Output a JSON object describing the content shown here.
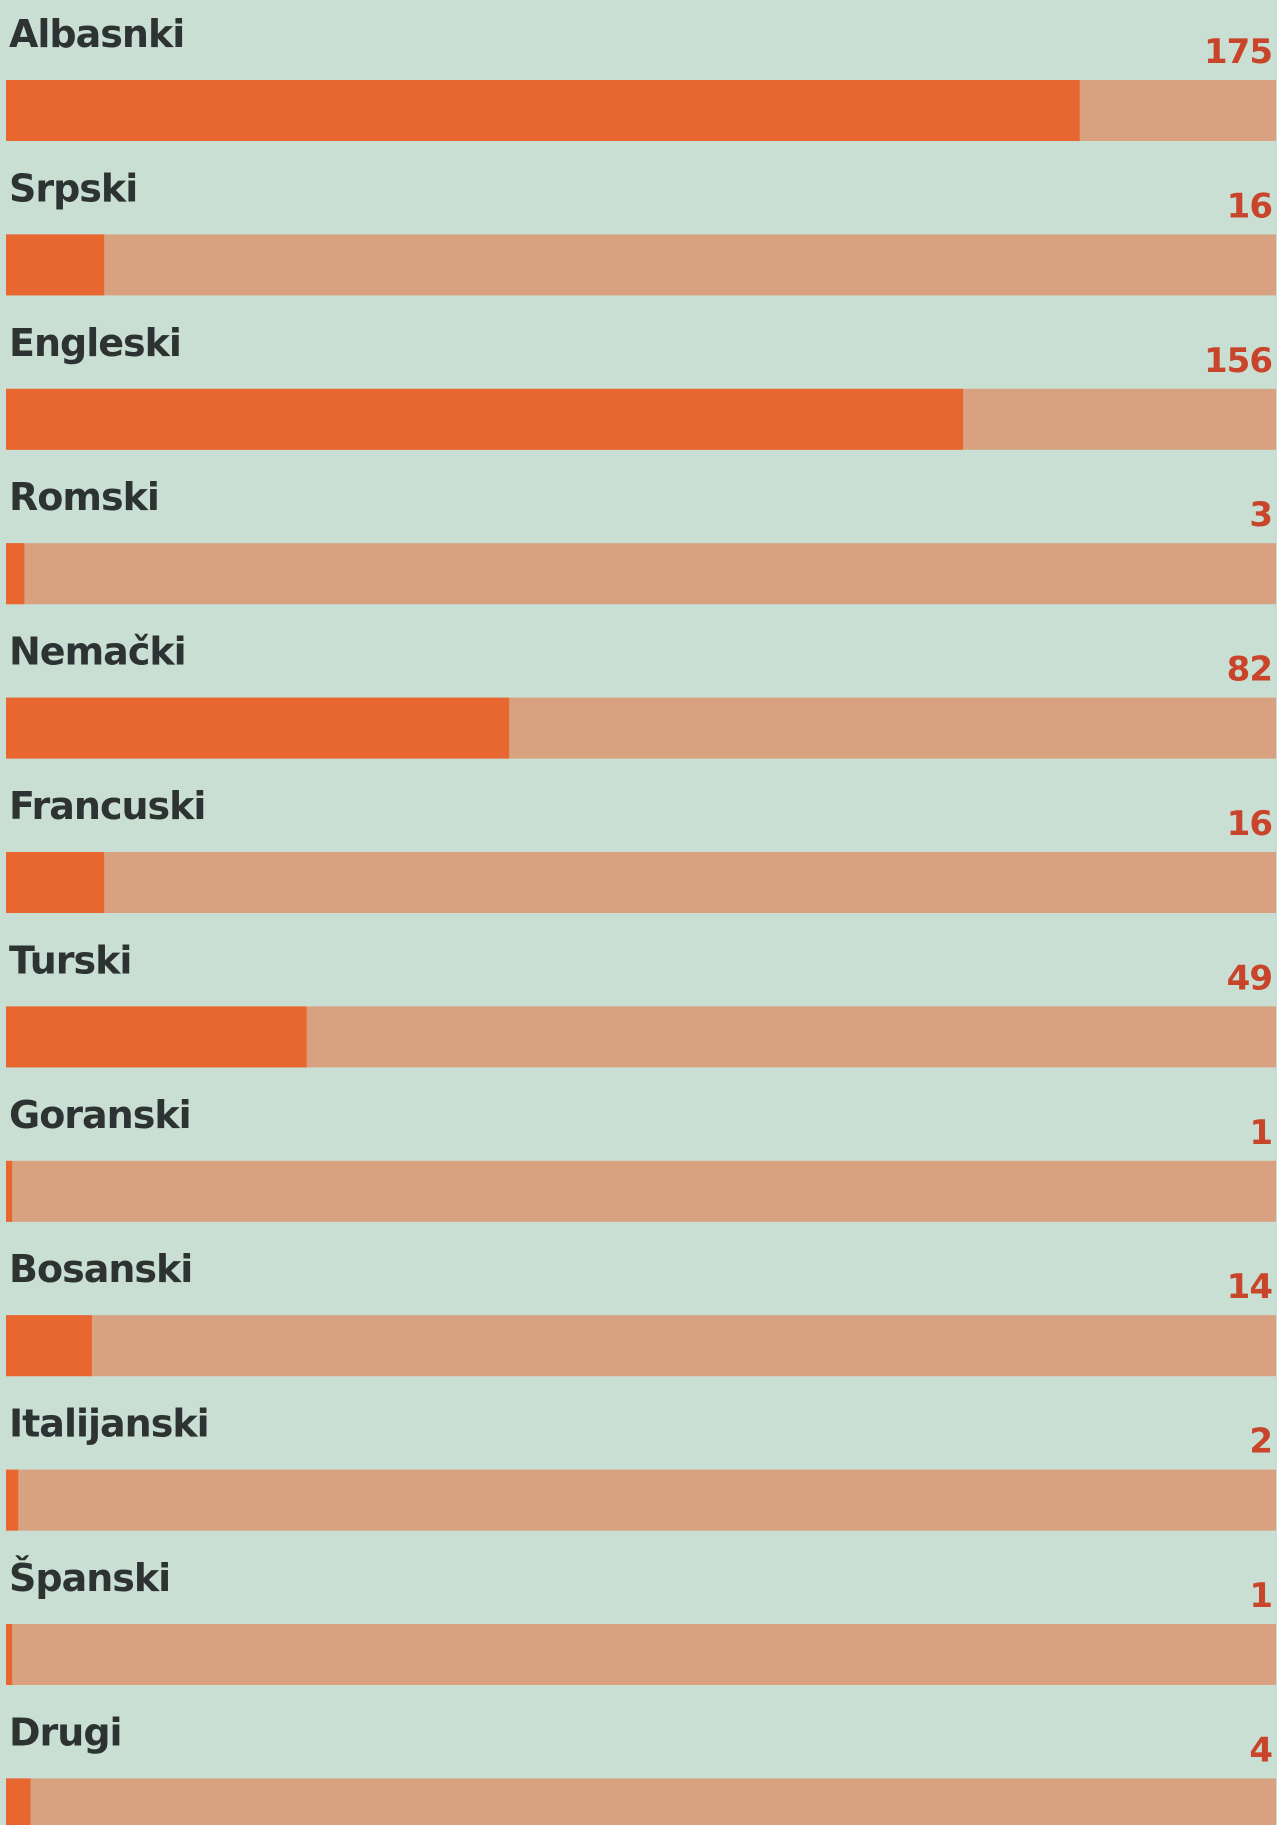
{
  "chart_data": {
    "type": "progress_bar",
    "categories": [
      "Albasnki",
      "Srpski",
      "Engleski",
      "Romski",
      "Nemački",
      "Francuski",
      "Turski",
      "Goranski",
      "Bosanski",
      "Italijanski",
      "Španski",
      "Drugi"
    ],
    "values": [
      175,
      16,
      156,
      3,
      82,
      16,
      49,
      1,
      14,
      2,
      1,
      4
    ],
    "xlim": [
      0,
      207
    ],
    "color": "#e86630",
    "track_color": "#d8a280",
    "background": "#cadfd3",
    "label_color": "#2d3332",
    "value_color": "#c8442a"
  }
}
